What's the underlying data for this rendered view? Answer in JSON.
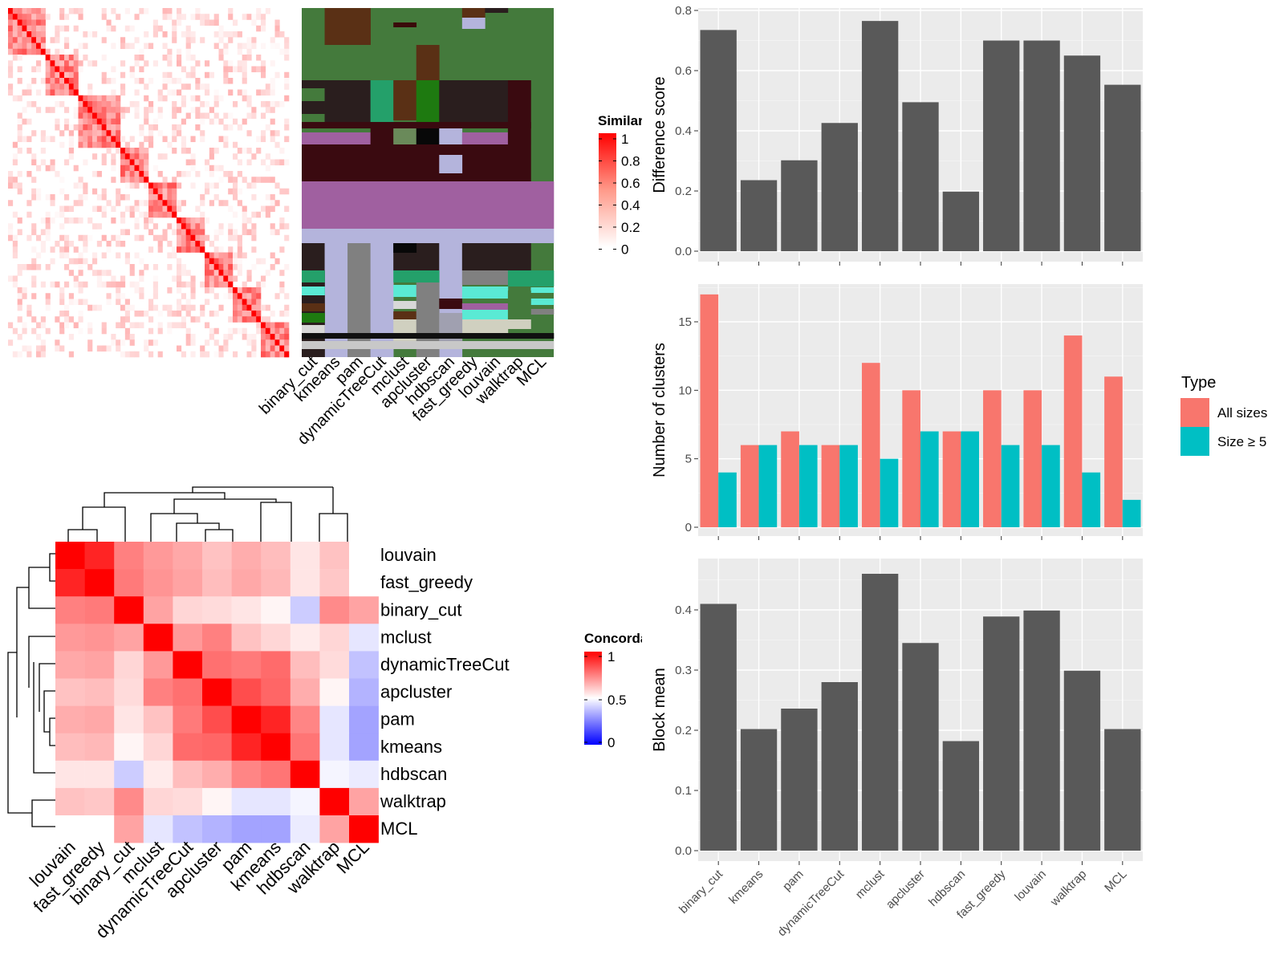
{
  "colors": {
    "panel_bg": "#ebebeb",
    "grid_major": "#ffffff",
    "bar_gray": "#595959",
    "all_sizes": "#f8766d",
    "size_ge5": "#00bfc4",
    "concord_high": "#ff0000",
    "concord_mid": "#ffffff",
    "concord_low": "#0000ff"
  },
  "similarity_legend": {
    "title": "Similarity",
    "ticks": [
      "1",
      "0.8",
      "0.6",
      "0.4",
      "0.2",
      "0"
    ]
  },
  "concordance_legend": {
    "title": "Concordance",
    "ticks": [
      "1",
      "0.5",
      "0"
    ]
  },
  "cluster_columns": [
    "binary_cut",
    "kmeans",
    "pam",
    "dynamicTreeCut",
    "mclust",
    "apcluster",
    "hdbscan",
    "fast_greedy",
    "louvain",
    "walktrap",
    "MCL"
  ],
  "concordance_order": [
    "louvain",
    "fast_greedy",
    "binary_cut",
    "mclust",
    "dynamicTreeCut",
    "apcluster",
    "pam",
    "kmeans",
    "hdbscan",
    "walktrap",
    "MCL"
  ],
  "concordance_matrix": [
    [
      1.0,
      0.93,
      0.75,
      0.7,
      0.67,
      0.62,
      0.66,
      0.63,
      0.55,
      0.62,
      0.5
    ],
    [
      0.93,
      1.0,
      0.76,
      0.71,
      0.68,
      0.63,
      0.67,
      0.64,
      0.55,
      0.61,
      0.5
    ],
    [
      0.75,
      0.76,
      1.0,
      0.68,
      0.58,
      0.57,
      0.55,
      0.52,
      0.4,
      0.73,
      0.68
    ],
    [
      0.7,
      0.71,
      0.68,
      1.0,
      0.7,
      0.75,
      0.62,
      0.58,
      0.54,
      0.58,
      0.45
    ],
    [
      0.67,
      0.68,
      0.58,
      0.7,
      1.0,
      0.78,
      0.76,
      0.79,
      0.63,
      0.57,
      0.38
    ],
    [
      0.62,
      0.63,
      0.57,
      0.75,
      0.78,
      1.0,
      0.85,
      0.8,
      0.66,
      0.52,
      0.35
    ],
    [
      0.66,
      0.67,
      0.55,
      0.62,
      0.76,
      0.85,
      1.0,
      0.93,
      0.74,
      0.45,
      0.32
    ],
    [
      0.63,
      0.64,
      0.52,
      0.58,
      0.79,
      0.8,
      0.93,
      1.0,
      0.77,
      0.45,
      0.32
    ],
    [
      0.55,
      0.55,
      0.4,
      0.54,
      0.63,
      0.66,
      0.74,
      0.77,
      1.0,
      0.48,
      0.46
    ],
    [
      0.62,
      0.61,
      0.73,
      0.58,
      0.57,
      0.52,
      0.45,
      0.45,
      0.48,
      1.0,
      0.68
    ],
    [
      0.5,
      0.5,
      0.68,
      0.45,
      0.38,
      0.35,
      0.32,
      0.32,
      0.46,
      0.68,
      1.0
    ]
  ],
  "chart_data": [
    {
      "type": "bar",
      "ylabel": "Difference score",
      "categories": [
        "binary_cut",
        "kmeans",
        "pam",
        "dynamicTreeCut",
        "mclust",
        "apcluster",
        "hdbscan",
        "fast_greedy",
        "louvain",
        "walktrap",
        "MCL"
      ],
      "values": [
        0.735,
        0.236,
        0.302,
        0.426,
        0.765,
        0.495,
        0.198,
        0.7,
        0.7,
        0.65,
        0.553
      ],
      "ylim": [
        0,
        0.835
      ],
      "yticks": [
        "0.0",
        "0.2",
        "0.4",
        "0.6",
        "0.8"
      ],
      "grid": true
    },
    {
      "type": "bar",
      "ylabel": "Number of clusters",
      "categories": [
        "binary_cut",
        "kmeans",
        "pam",
        "dynamicTreeCut",
        "mclust",
        "apcluster",
        "hdbscan",
        "fast_greedy",
        "louvain",
        "walktrap",
        "MCL"
      ],
      "legend": {
        "title": "Type",
        "placement": "right"
      },
      "series": [
        {
          "name": "All sizes",
          "values": [
            17,
            6,
            7,
            6,
            12,
            10,
            7,
            10,
            10,
            14,
            11
          ]
        },
        {
          "name": "Size ≥ 5",
          "values": [
            4,
            6,
            6,
            6,
            5,
            7,
            7,
            6,
            6,
            4,
            2
          ]
        }
      ],
      "ylim": [
        0,
        17.8
      ],
      "yticks": [
        "0",
        "5",
        "10",
        "15"
      ],
      "grid": true
    },
    {
      "type": "bar",
      "ylabel": "Block mean",
      "categories": [
        "binary_cut",
        "kmeans",
        "pam",
        "dynamicTreeCut",
        "mclust",
        "apcluster",
        "hdbscan",
        "fast_greedy",
        "louvain",
        "walktrap",
        "MCL"
      ],
      "values": [
        0.41,
        0.202,
        0.236,
        0.28,
        0.46,
        0.345,
        0.182,
        0.389,
        0.399,
        0.299,
        0.202
      ],
      "ylim": [
        0,
        0.48
      ],
      "yticks": [
        "0.0",
        "0.1",
        "0.2",
        "0.3",
        "0.4"
      ],
      "grid": true
    }
  ]
}
